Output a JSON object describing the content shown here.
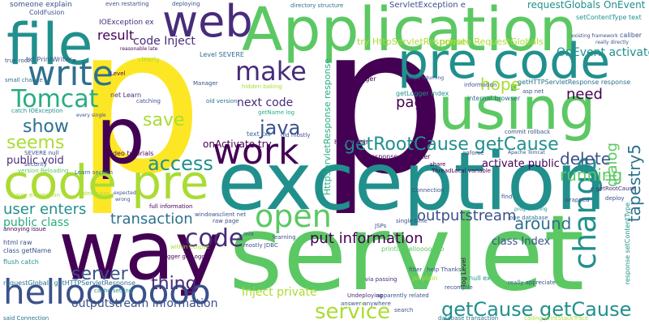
{
  "words": [
    {
      "text": "p",
      "color": "#fde725"
    },
    {
      "text": "p",
      "color": "#440154"
    },
    {
      "text": "servlet",
      "color": "#5cc863"
    },
    {
      "text": "exception",
      "color": "#21908d"
    },
    {
      "text": "way",
      "color": "#440154"
    },
    {
      "text": "Application",
      "color": "#5cc863"
    },
    {
      "text": "file",
      "color": "#21908d"
    },
    {
      "text": "pre code",
      "color": "#21908d"
    },
    {
      "text": "using",
      "color": "#5cc863"
    },
    {
      "text": "p",
      "color": "#440154"
    },
    {
      "text": "work",
      "color": "#440154"
    },
    {
      "text": "code pre",
      "color": "#aadc32"
    },
    {
      "text": "web",
      "color": "#472c7a"
    },
    {
      "text": "write",
      "color": "#2c718e"
    },
    {
      "text": "Tomcat",
      "color": "#27ad81"
    },
    {
      "text": "hellooooooo",
      "color": "#3b518b"
    },
    {
      "text": "open",
      "color": "#5cc863"
    },
    {
      "text": "change",
      "color": "#21908d"
    },
    {
      "text": "make",
      "color": "#472c7a"
    },
    {
      "text": "getRootCause getCause",
      "color": "#21908d"
    },
    {
      "text": "getCause getCause",
      "color": "#21908d"
    },
    {
      "text": "service",
      "color": "#aadc32"
    },
    {
      "text": "code",
      "color": "#472c7a"
    },
    {
      "text": "access",
      "color": "#21908d"
    },
    {
      "text": "java",
      "color": "#3b518b"
    },
    {
      "text": "show",
      "color": "#2c718e"
    },
    {
      "text": "save",
      "color": "#aadc32"
    },
    {
      "text": "seems",
      "color": "#aadc32"
    },
    {
      "text": "thing",
      "color": "#472c7a"
    },
    {
      "text": "server",
      "color": "#3b518b"
    },
    {
      "text": "user enters",
      "color": "#21908d"
    },
    {
      "text": "transaction",
      "color": "#2c718e"
    },
    {
      "text": "put information",
      "color": "#440154"
    },
    {
      "text": "outputstream",
      "color": "#3b518b"
    },
    {
      "text": "around",
      "color": "#2c718e"
    },
    {
      "text": "running",
      "color": "#5cc863"
    },
    {
      "text": "delete",
      "color": "#3b518b"
    },
    {
      "text": "hope",
      "color": "#aadc32"
    },
    {
      "text": "need",
      "color": "#440154"
    },
    {
      "text": "page",
      "color": "#440154"
    },
    {
      "text": "result",
      "color": "#440154"
    },
    {
      "text": "code Inject",
      "color": "#472c7a"
    },
    {
      "text": "next code",
      "color": "#472c7a"
    },
    {
      "text": "public class",
      "color": "#27ad81"
    },
    {
      "text": "outputstream information",
      "color": "#3b518b"
    },
    {
      "text": "Inject private",
      "color": "#aadc32"
    },
    {
      "text": "dialog",
      "color": "#5cc863"
    },
    {
      "text": "tapestry5",
      "color": "#2c718e"
    },
    {
      "text": "activate public",
      "color": "#440154"
    },
    {
      "text": "class Index",
      "color": "#3b518b"
    },
    {
      "text": "OnEvent activate",
      "color": "#21908d"
    },
    {
      "text": "onActivate try",
      "color": "#440154"
    },
    {
      "text": "public void",
      "color": "#472c7a"
    },
    {
      "text": "try HttpServletResponse",
      "color": "#aadc32"
    },
    {
      "text": "private RequestGlobals",
      "color": "#aadc32"
    },
    {
      "text": "requestGlobals OnEvent",
      "color": "#21908d"
    },
    {
      "text": "ServletException e",
      "color": "#3b518b"
    },
    {
      "text": "IOException ex",
      "color": "#472c7a"
    },
    {
      "text": "someone explain",
      "color": "#3b518b"
    },
    {
      "text": "even restarting",
      "color": "#3b518b"
    },
    {
      "text": "deploying",
      "color": "#3b518b"
    },
    {
      "text": "directory structure",
      "color": "#2c718e"
    },
    {
      "text": "ColdFusion",
      "color": "#3b518b"
    },
    {
      "text": "txt PrintWriter",
      "color": "#3b518b"
    },
    {
      "text": "true root",
      "color": "#3b518b"
    },
    {
      "text": "setContentType text",
      "color": "#21908d"
    },
    {
      "text": "getHTTPServletResponse response",
      "color": "#2c718e"
    },
    {
      "text": "HttpServletResponse response",
      "color": "#27ad81"
    },
    {
      "text": "getLogger Index",
      "color": "#21908d"
    },
    {
      "text": "internal browser",
      "color": "#2c718e"
    },
    {
      "text": "text txt",
      "color": "#2c718e"
    },
    {
      "text": "old mostly",
      "color": "#3b518b"
    },
    {
      "text": "hit refresh",
      "color": "#440154"
    },
    {
      "text": "response getWriter",
      "color": "#440154"
    },
    {
      "text": "ex Logger",
      "color": "#440154"
    },
    {
      "text": "Level SEVERE",
      "color": "#2c718e"
    },
    {
      "text": "getName log",
      "color": "#27ad81"
    },
    {
      "text": "hidden baking",
      "color": "#aadc32"
    },
    {
      "text": "SEVERE null",
      "color": "#3b518b"
    },
    {
      "text": "video tutorials",
      "color": "#440154"
    },
    {
      "text": "Learn section",
      "color": "#2c718e"
    },
    {
      "text": "Index class",
      "color": "#aadc32"
    },
    {
      "text": "full information",
      "color": "#440154"
    },
    {
      "text": "funny expression",
      "color": "#aadc32"
    },
    {
      "text": "windowsclient net",
      "color": "#3b518b"
    },
    {
      "text": "raw page",
      "color": "#3b518b"
    },
    {
      "text": "html raw",
      "color": "#3b518b"
    },
    {
      "text": "class getName",
      "color": "#3b518b"
    },
    {
      "text": "flush catch",
      "color": "#21908d"
    },
    {
      "text": "Logger getLogger",
      "color": "#440154"
    },
    {
      "text": "within Eclipse",
      "color": "#aadc32"
    },
    {
      "text": "requestGlobals getHTTPServletResponse",
      "color": "#2c718e"
    },
    {
      "text": "cache setting",
      "color": "#21908d"
    },
    {
      "text": "println hellooooooo",
      "color": "#5cc863"
    },
    {
      "text": "log Level",
      "color": "#440154"
    },
    {
      "text": "null ex",
      "color": "#21908d"
    },
    {
      "text": "help Thanks",
      "color": "#3b518b"
    },
    {
      "text": "really appreciate",
      "color": "#3b518b"
    },
    {
      "text": "apparently related",
      "color": "#3b518b"
    },
    {
      "text": "answer anywhere",
      "color": "#3b518b"
    },
    {
      "text": "database transaction",
      "color": "#2c718e"
    },
    {
      "text": "calling printStackTrace",
      "color": "#aadc32"
    },
    {
      "text": "said Connection",
      "color": "#2c718e"
    },
    {
      "text": "response setContentType",
      "color": "#21908d"
    },
    {
      "text": "enforce",
      "color": "#3b518b"
    },
    {
      "text": "Apache Tomcat",
      "color": "#3b518b"
    },
    {
      "text": "one database",
      "color": "#2c718e"
    },
    {
      "text": "programming",
      "color": "#21908d"
    },
    {
      "text": "wrapped",
      "color": "#3b518b"
    },
    {
      "text": "deploy",
      "color": "#3b518b"
    },
    {
      "text": "e getRootCause",
      "color": "#472c7a"
    },
    {
      "text": "find",
      "color": "#3b518b"
    },
    {
      "text": "commit rollback",
      "color": "#3b518b"
    },
    {
      "text": "jsf plain",
      "color": "#aadc32"
    },
    {
      "text": "recompile",
      "color": "#3b518b"
    },
    {
      "text": "filter",
      "color": "#3b518b"
    },
    {
      "text": "via passing",
      "color": "#472c7a"
    },
    {
      "text": "Undeploying",
      "color": "#472c7a"
    },
    {
      "text": "mostly JDBC",
      "color": "#3b518b"
    },
    {
      "text": "learning",
      "color": "#3b518b"
    },
    {
      "text": "JSPs",
      "color": "#3b518b"
    },
    {
      "text": "single time",
      "color": "#3b518b"
    },
    {
      "text": "catch IOException",
      "color": "#21908d"
    },
    {
      "text": "small change",
      "color": "#2c718e"
    },
    {
      "text": "every single",
      "color": "#3b518b"
    },
    {
      "text": "security",
      "color": "#3b518b"
    },
    {
      "text": "version Reloading",
      "color": "#5cc863"
    },
    {
      "text": "annoying issue",
      "color": "#440154"
    },
    {
      "text": "net Learn",
      "color": "#472c7a"
    },
    {
      "text": "catching",
      "color": "#3b518b"
    },
    {
      "text": "old version",
      "color": "#2c718e"
    },
    {
      "text": "information",
      "color": "#3b518b"
    },
    {
      "text": "keeps returning",
      "color": "#3b518b"
    },
    {
      "text": "asp net",
      "color": "#3b518b"
    },
    {
      "text": "existing framework",
      "color": "#3b518b"
    },
    {
      "text": "really directly",
      "color": "#3b518b"
    },
    {
      "text": "caliber",
      "color": "#3b518b"
    },
    {
      "text": "clearly",
      "color": "#aadc32"
    },
    {
      "text": "reasonable late",
      "color": "#440154"
    },
    {
      "text": "Manager",
      "color": "#3b518b"
    },
    {
      "text": "Level",
      "color": "#440154"
    },
    {
      "text": "expected",
      "color": "#3b518b"
    },
    {
      "text": "wrong",
      "color": "#3b518b"
    },
    {
      "text": "mix",
      "color": "#3b518b"
    },
    {
      "text": "search",
      "color": "#3b518b"
    },
    {
      "text": "Connection",
      "color": "#3b518b"
    },
    {
      "text": "share",
      "color": "#440154"
    },
    {
      "text": "ThreadLocal variable",
      "color": "#440154"
    }
  ]
}
